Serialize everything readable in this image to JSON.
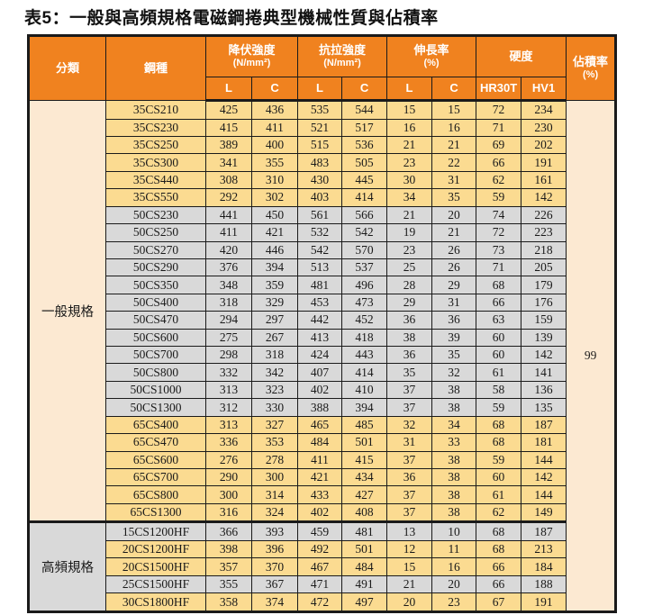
{
  "title": "表5：一般與高頻規格電磁鋼捲典型機械性質與佔積率",
  "colors": {
    "header_orange": "#F0821F",
    "band_yellow": "#FBDB91",
    "band_gray": "#D9D9D9",
    "merged_peach": "#FCE9D2",
    "border": "#1a1a1a",
    "header_text": "#ffffff"
  },
  "table": {
    "header": {
      "category": "分類",
      "grade": "鋼種",
      "groups": [
        {
          "label": "降伏強度",
          "unit": "(N/mm²)",
          "cols": [
            "L",
            "C"
          ]
        },
        {
          "label": "抗拉強度",
          "unit": "(N/mm²)",
          "cols": [
            "L",
            "C"
          ]
        },
        {
          "label": "伸長率",
          "unit": "(%)",
          "cols": [
            "L",
            "C"
          ]
        },
        {
          "label": "硬度",
          "unit": "",
          "cols": [
            "HR30T",
            "HV1"
          ]
        }
      ],
      "stacking": "佔積率",
      "stacking_unit": "(%)"
    },
    "sections": [
      {
        "label": "一般規格",
        "label_band": "peach",
        "rows": [
          {
            "grade": "35CS210",
            "band": "yellow",
            "values": [
              425,
              436,
              535,
              544,
              15,
              15,
              72,
              234
            ]
          },
          {
            "grade": "35CS230",
            "band": "yellow",
            "values": [
              415,
              411,
              521,
              517,
              16,
              16,
              71,
              230
            ]
          },
          {
            "grade": "35CS250",
            "band": "yellow",
            "values": [
              389,
              400,
              515,
              536,
              21,
              21,
              69,
              202
            ]
          },
          {
            "grade": "35CS300",
            "band": "yellow",
            "values": [
              341,
              355,
              483,
              505,
              23,
              22,
              66,
              191
            ]
          },
          {
            "grade": "35CS440",
            "band": "yellow",
            "values": [
              308,
              310,
              430,
              445,
              30,
              31,
              62,
              161
            ]
          },
          {
            "grade": "35CS550",
            "band": "yellow",
            "values": [
              292,
              302,
              403,
              414,
              34,
              35,
              59,
              142
            ]
          },
          {
            "grade": "50CS230",
            "band": "gray",
            "values": [
              441,
              450,
              561,
              566,
              21,
              20,
              74,
              226
            ]
          },
          {
            "grade": "50CS250",
            "band": "gray",
            "values": [
              411,
              421,
              532,
              542,
              19,
              21,
              72,
              223
            ]
          },
          {
            "grade": "50CS270",
            "band": "gray",
            "values": [
              420,
              446,
              542,
              570,
              23,
              26,
              73,
              218
            ]
          },
          {
            "grade": "50CS290",
            "band": "gray",
            "values": [
              376,
              394,
              513,
              537,
              25,
              26,
              71,
              205
            ]
          },
          {
            "grade": "50CS350",
            "band": "gray",
            "values": [
              348,
              359,
              481,
              496,
              28,
              29,
              68,
              179
            ]
          },
          {
            "grade": "50CS400",
            "band": "gray",
            "values": [
              318,
              329,
              453,
              473,
              29,
              31,
              66,
              176
            ]
          },
          {
            "grade": "50CS470",
            "band": "gray",
            "values": [
              294,
              297,
              442,
              452,
              36,
              36,
              63,
              159
            ]
          },
          {
            "grade": "50CS600",
            "band": "gray",
            "values": [
              275,
              267,
              413,
              418,
              38,
              39,
              60,
              139
            ]
          },
          {
            "grade": "50CS700",
            "band": "gray",
            "values": [
              298,
              318,
              424,
              443,
              36,
              35,
              60,
              142
            ]
          },
          {
            "grade": "50CS800",
            "band": "gray",
            "values": [
              332,
              342,
              407,
              414,
              35,
              32,
              61,
              141
            ]
          },
          {
            "grade": "50CS1000",
            "band": "gray",
            "values": [
              313,
              323,
              402,
              410,
              37,
              38,
              58,
              136
            ]
          },
          {
            "grade": "50CS1300",
            "band": "gray",
            "values": [
              312,
              330,
              388,
              394,
              37,
              38,
              59,
              135
            ]
          },
          {
            "grade": "65CS400",
            "band": "yellow",
            "values": [
              313,
              327,
              465,
              485,
              32,
              34,
              68,
              187
            ]
          },
          {
            "grade": "65CS470",
            "band": "yellow",
            "values": [
              336,
              353,
              484,
              501,
              31,
              33,
              68,
              181
            ]
          },
          {
            "grade": "65CS600",
            "band": "yellow",
            "values": [
              276,
              278,
              411,
              415,
              37,
              38,
              59,
              144
            ]
          },
          {
            "grade": "65CS700",
            "band": "yellow",
            "values": [
              290,
              300,
              421,
              434,
              36,
              38,
              60,
              142
            ]
          },
          {
            "grade": "65CS800",
            "band": "yellow",
            "values": [
              300,
              314,
              433,
              427,
              37,
              38,
              61,
              144
            ]
          },
          {
            "grade": "65CS1300",
            "band": "yellow",
            "values": [
              316,
              324,
              402,
              408,
              37,
              38,
              62,
              149
            ]
          }
        ]
      },
      {
        "label": "高頻規格",
        "label_band": "gray",
        "rows": [
          {
            "grade": "15CS1200HF",
            "band": "gray",
            "values": [
              366,
              393,
              459,
              481,
              13,
              10,
              68,
              187
            ]
          },
          {
            "grade": "20CS1200HF",
            "band": "yellow",
            "values": [
              398,
              396,
              492,
              501,
              12,
              11,
              68,
              213
            ]
          },
          {
            "grade": "20CS1500HF",
            "band": "yellow",
            "values": [
              357,
              370,
              467,
              484,
              15,
              16,
              66,
              184
            ]
          },
          {
            "grade": "25CS1500HF",
            "band": "gray",
            "values": [
              355,
              367,
              471,
              491,
              21,
              20,
              66,
              188
            ]
          },
          {
            "grade": "30CS1800HF",
            "band": "yellow",
            "values": [
              358,
              374,
              472,
              497,
              20,
              23,
              67,
              191
            ]
          }
        ]
      }
    ],
    "stacking_value": "99"
  }
}
